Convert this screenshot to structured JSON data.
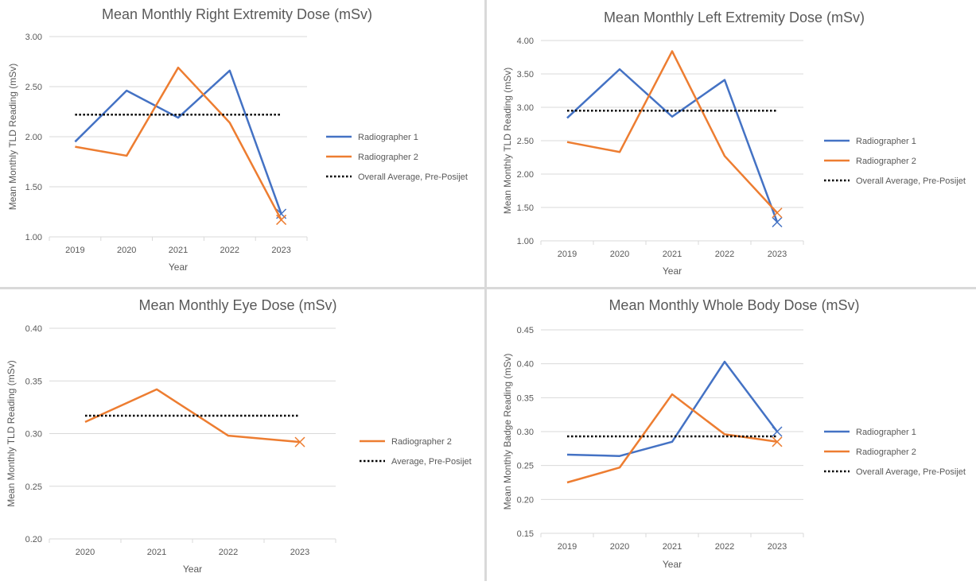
{
  "colors": {
    "radiographer_1": "#4472c4",
    "radiographer_2": "#ed7d31",
    "average": "#000000",
    "grid": "#d9d9d9",
    "text": "#595959"
  },
  "chart_data": [
    {
      "type": "line",
      "title": "Mean Monthly Right Extremity Dose (mSv)",
      "xlabel": "Year",
      "ylabel": "Mean Monthly  TLD Reading (mSv)",
      "categories": [
        "2019",
        "2020",
        "2021",
        "2022",
        "2023"
      ],
      "yticks": [
        "1.00",
        "1.50",
        "2.00",
        "2.50",
        "3.00"
      ],
      "ylim": [
        1.0,
        3.0
      ],
      "grid": true,
      "legend_position": "right",
      "series": [
        {
          "name": "Radiographer 1",
          "values": [
            1.95,
            2.46,
            2.19,
            2.66,
            1.23
          ],
          "color": "#4472c4",
          "style": "solid",
          "marker_last": "x"
        },
        {
          "name": "Radiographer 2",
          "values": [
            1.9,
            1.81,
            2.69,
            2.14,
            1.17
          ],
          "color": "#ed7d31",
          "style": "solid",
          "marker_last": "x"
        },
        {
          "name": "Overall Average, Pre-Posijet",
          "values": [
            2.22,
            2.22,
            2.22,
            2.22,
            2.22
          ],
          "color": "#000000",
          "style": "dotted"
        }
      ]
    },
    {
      "type": "line",
      "title": "Mean Monthly Left Extremity Dose (mSv)",
      "xlabel": "Year",
      "ylabel": "Mean Monthly  TLD Reading (mSv)",
      "categories": [
        "2019",
        "2020",
        "2021",
        "2022",
        "2023"
      ],
      "yticks": [
        "1.00",
        "1.50",
        "2.00",
        "2.50",
        "3.00",
        "3.50",
        "4.00"
      ],
      "ylim": [
        1.0,
        4.0
      ],
      "grid": true,
      "legend_position": "right",
      "series": [
        {
          "name": "Radiographer 1",
          "values": [
            2.84,
            3.57,
            2.86,
            3.41,
            1.28
          ],
          "color": "#4472c4",
          "style": "solid",
          "marker_last": "x"
        },
        {
          "name": "Radiographer 2",
          "values": [
            2.48,
            2.33,
            3.84,
            2.27,
            1.42
          ],
          "color": "#ed7d31",
          "style": "solid",
          "marker_last": "x"
        },
        {
          "name": "Overall Average, Pre-Posijet",
          "values": [
            2.95,
            2.95,
            2.95,
            2.95,
            2.95
          ],
          "color": "#000000",
          "style": "dotted"
        }
      ]
    },
    {
      "type": "line",
      "title": "Mean Monthly Eye Dose (mSv)",
      "xlabel": "Year",
      "ylabel": "Mean Monthly  TLD Reading (mSv)",
      "categories": [
        "2020",
        "2021",
        "2022",
        "2023"
      ],
      "yticks": [
        "0.20",
        "0.25",
        "0.30",
        "0.35",
        "0.40"
      ],
      "ylim": [
        0.2,
        0.4
      ],
      "grid": true,
      "legend_position": "right",
      "series": [
        {
          "name": "Radiographer 2",
          "values": [
            0.311,
            0.342,
            0.298,
            0.292
          ],
          "color": "#ed7d31",
          "style": "solid",
          "marker_last": "x"
        },
        {
          "name": "Average, Pre-Posijet",
          "values": [
            0.317,
            0.317,
            0.317,
            0.317
          ],
          "color": "#000000",
          "style": "dotted"
        }
      ]
    },
    {
      "type": "line",
      "title": "Mean Monthly Whole Body Dose (mSv)",
      "xlabel": "Year",
      "ylabel": "Mean Monthly Badge Reading (mSv)",
      "categories": [
        "2019",
        "2020",
        "2021",
        "2022",
        "2023"
      ],
      "yticks": [
        "0.15",
        "0.20",
        "0.25",
        "0.30",
        "0.35",
        "0.40",
        "0.45"
      ],
      "ylim": [
        0.15,
        0.45
      ],
      "grid": true,
      "legend_position": "right",
      "series": [
        {
          "name": "Radiographer 1",
          "values": [
            0.266,
            0.264,
            0.285,
            0.403,
            0.3
          ],
          "color": "#4472c4",
          "style": "solid",
          "marker_last": "x"
        },
        {
          "name": "Radiographer 2",
          "values": [
            0.225,
            0.247,
            0.355,
            0.296,
            0.285
          ],
          "color": "#ed7d31",
          "style": "solid",
          "marker_last": "x"
        },
        {
          "name": "Overall Average, Pre-Posijet",
          "values": [
            0.293,
            0.293,
            0.293,
            0.293,
            0.293
          ],
          "color": "#000000",
          "style": "dotted"
        }
      ]
    }
  ]
}
